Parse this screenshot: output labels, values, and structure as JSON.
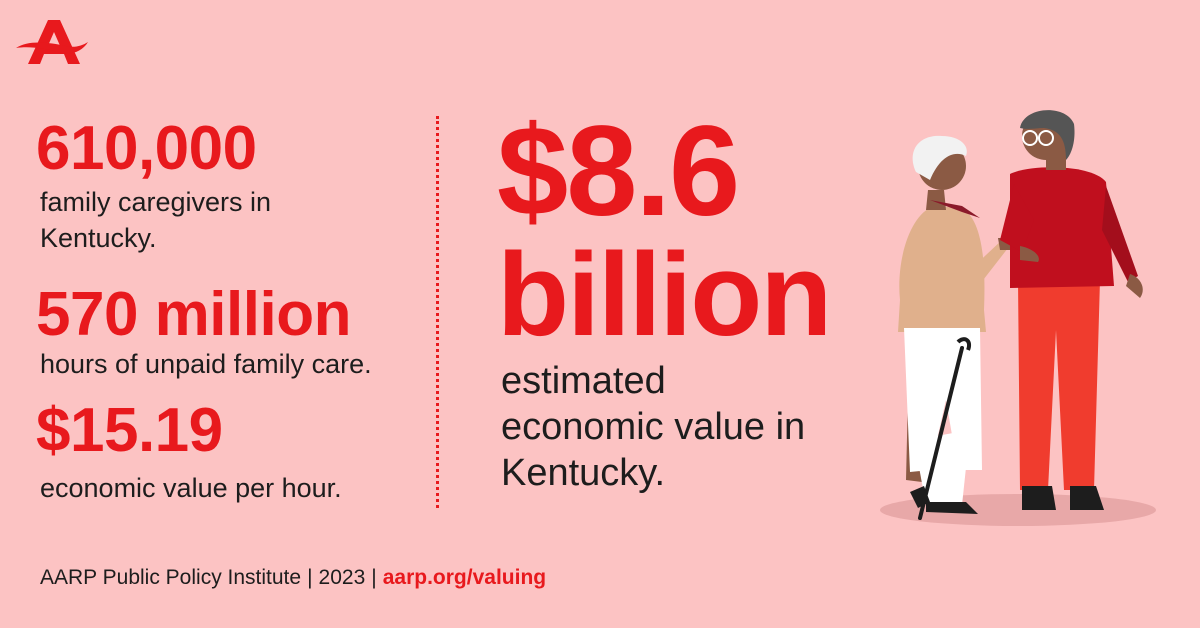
{
  "brand": {
    "logo_icon": "aarp-logo-icon",
    "accent_color": "#e8191d",
    "background_color": "#fcc3c3"
  },
  "stats": [
    {
      "number": "610,000",
      "description": "family caregivers in Kentucky."
    },
    {
      "number": "570 million",
      "description": "hours of unpaid family care."
    },
    {
      "number": "$15.19",
      "description": "economic value per hour."
    }
  ],
  "headline": {
    "line1": "$8.6",
    "line2": "billion",
    "description": "estimated economic value in Kentucky."
  },
  "footer": {
    "source": "AARP Public Policy Institute",
    "year": "2023",
    "link": "aarp.org/valuing"
  },
  "illustration": {
    "icon": "caregiver-couple-illustration"
  }
}
